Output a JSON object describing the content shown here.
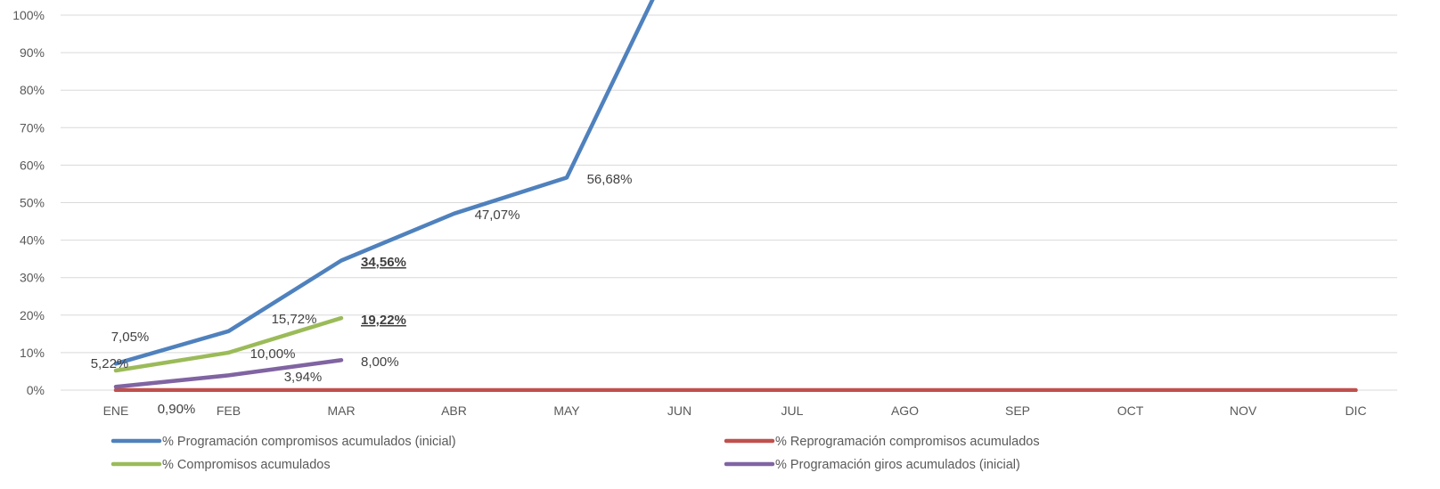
{
  "chart_data": {
    "type": "line",
    "categories": [
      "ENE",
      "FEB",
      "MAR",
      "ABR",
      "MAY",
      "JUN",
      "JUL",
      "AGO",
      "SEP",
      "OCT",
      "NOV",
      "DIC"
    ],
    "y_ticks": [
      "0%",
      "10%",
      "20%",
      "30%",
      "40%",
      "50%",
      "60%",
      "70%",
      "80%",
      "90%",
      "100%"
    ],
    "ylim": [
      0,
      100
    ],
    "grid": true,
    "legend_position": "bottom",
    "series": [
      {
        "name": "% Programación compromisos acumulados (inicial)",
        "color": "#4f81bd",
        "values": [
          7.05,
          15.72,
          34.56,
          47.07,
          56.68,
          119,
          null,
          null,
          null,
          null,
          null,
          null
        ],
        "labels": [
          "7,05%",
          "15,72%",
          "34,56%",
          "47,07%",
          "56,68%",
          "",
          "",
          "",
          "",
          "",
          "",
          ""
        ]
      },
      {
        "name": "% Reprogramación compromisos acumulados",
        "color": "#c0504d",
        "values": [
          0,
          0,
          0,
          0,
          0,
          0,
          0,
          0,
          0,
          0,
          0,
          0
        ],
        "labels": [
          "",
          "",
          "",
          "",
          "",
          "",
          "",
          "",
          "",
          "",
          "",
          ""
        ]
      },
      {
        "name": "% Compromisos acumulados",
        "color": "#9bbb59",
        "values": [
          5.22,
          10.0,
          19.22,
          null,
          null,
          null,
          null,
          null,
          null,
          null,
          null,
          null
        ],
        "labels": [
          "5,22%",
          "10,00%",
          "19,22%",
          "",
          "",
          "",
          "",
          "",
          "",
          "",
          "",
          ""
        ]
      },
      {
        "name": "% Programación giros acumulados (inicial)",
        "color": "#8064a2",
        "values": [
          0.9,
          3.94,
          8.0,
          null,
          null,
          null,
          null,
          null,
          null,
          null,
          null,
          null
        ],
        "labels": [
          "0,90%",
          "3,94%",
          "8,00%",
          "",
          "",
          "",
          "",
          "",
          "",
          "",
          "",
          ""
        ]
      }
    ]
  }
}
